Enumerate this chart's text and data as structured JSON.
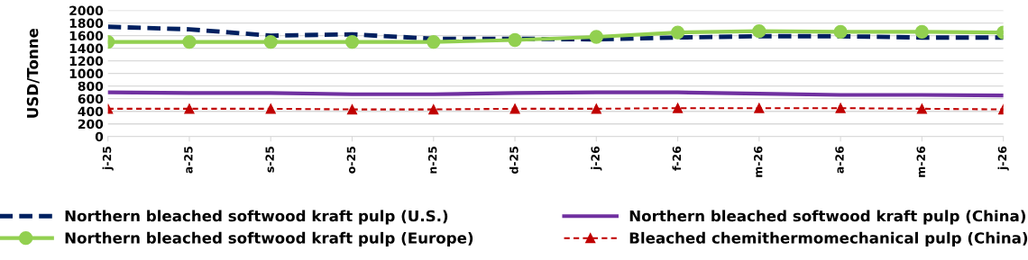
{
  "chart_data": {
    "type": "line",
    "ylabel": "USD/Tonne",
    "categories": [
      "j-25",
      "a-25",
      "s-25",
      "o-25",
      "n-25",
      "d-25",
      "j-26",
      "f-26",
      "m-26",
      "a-26",
      "m-26",
      "j-26"
    ],
    "ylim": [
      0,
      2000
    ],
    "yticks": [
      0,
      200,
      400,
      600,
      800,
      1000,
      1200,
      1400,
      1600,
      1800,
      2000
    ],
    "grid": "y",
    "legend": "bottom",
    "series": [
      {
        "name": "Northern bleached softwood kraft pulp (U.S.)",
        "color": "#002060",
        "line_style": "dashed",
        "marker": "none",
        "values": [
          1740,
          1700,
          1600,
          1620,
          1550,
          1550,
          1540,
          1570,
          1590,
          1590,
          1570,
          1570
        ]
      },
      {
        "name": "Northern bleached softwood kraft pulp (Europe)",
        "color": "#92d050",
        "line_style": "solid",
        "marker": "circle",
        "values": [
          1500,
          1500,
          1500,
          1500,
          1500,
          1530,
          1580,
          1650,
          1670,
          1660,
          1660,
          1650
        ]
      },
      {
        "name": "Northern bleached softwood kraft pulp (China)",
        "color": "#7030a0",
        "line_style": "solid",
        "marker": "none",
        "values": [
          700,
          690,
          690,
          670,
          670,
          690,
          700,
          700,
          680,
          660,
          660,
          650
        ]
      },
      {
        "name": "Bleached chemithermomechanical pulp (China)",
        "color": "#c00000",
        "line_style": "dotted",
        "marker": "triangle",
        "values": [
          440,
          440,
          440,
          430,
          430,
          440,
          440,
          450,
          450,
          450,
          440,
          430
        ]
      }
    ]
  }
}
